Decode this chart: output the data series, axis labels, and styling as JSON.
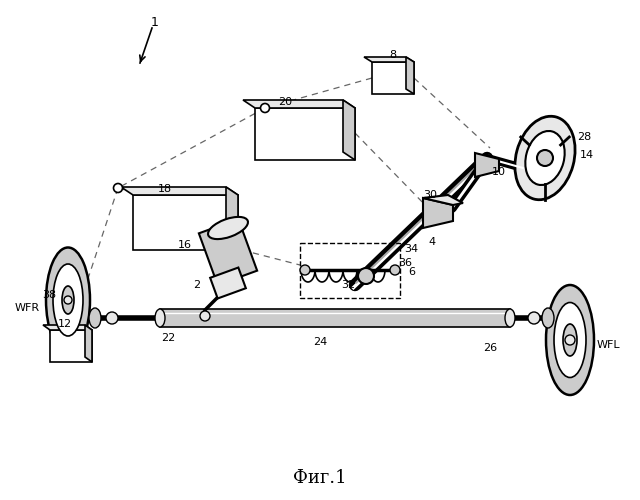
{
  "title": "Фиг.1",
  "bg_color": "#ffffff",
  "line_color": "#000000",
  "gray_light": "#e8e8e8",
  "gray_mid": "#cccccc",
  "gray_dark": "#aaaaaa",
  "dash_color": "#666666"
}
